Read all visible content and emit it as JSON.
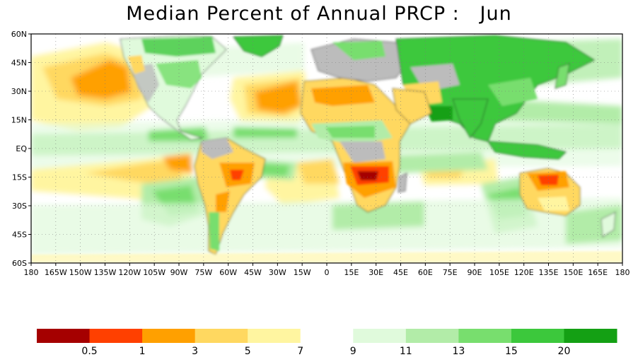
{
  "title": "Median Percent of Annual PRCP :   Jun",
  "map": {
    "lat_labels": [
      "60N",
      "45N",
      "30N",
      "15N",
      "EQ",
      "15S",
      "30S",
      "45S",
      "60S"
    ],
    "lon_labels": [
      "180",
      "165W",
      "150W",
      "135W",
      "120W",
      "105W",
      "90W",
      "75W",
      "60W",
      "45W",
      "30W",
      "15W",
      "0",
      "15E",
      "30E",
      "45E",
      "60E",
      "75E",
      "90E",
      "105E",
      "120E",
      "135E",
      "150E",
      "165E",
      "180"
    ],
    "grid": true,
    "ocean_color": "#ffffff",
    "land_missing_color": "#bcbcbc"
  },
  "legend": {
    "labels": [
      "0.5",
      "1",
      "3",
      "5",
      "7",
      "9",
      "11",
      "13",
      "15",
      "20"
    ],
    "colors": [
      "#a50000",
      "#ff4000",
      "#ffa000",
      "#ffd860",
      "#fff5a0",
      "#ffffff",
      "#e0fadc",
      "#b2eca8",
      "#78de6e",
      "#3cc83c",
      "#14a014"
    ]
  }
}
